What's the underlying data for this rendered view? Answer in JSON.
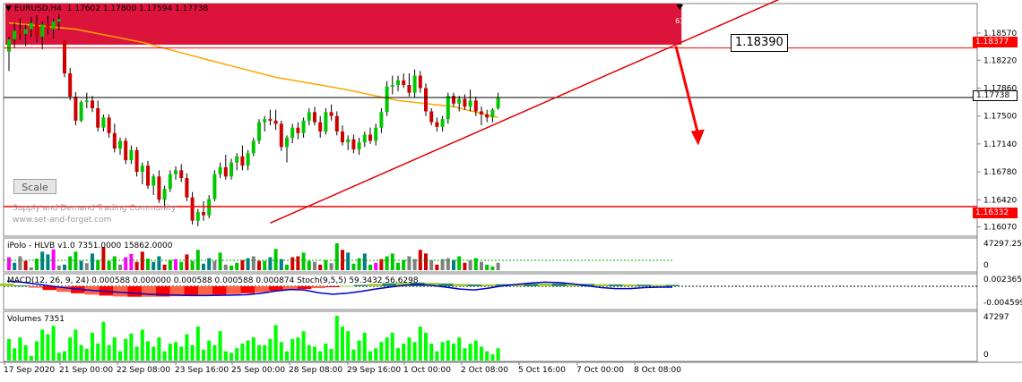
{
  "header": {
    "symbol": "EURUSD,H4",
    "ohlc": "1.17602 1.17800 1.17594 1.17738"
  },
  "scale_button": "Scale",
  "watermark": {
    "line1": "Supply and Demand Trading Community",
    "line2": "www.set-and-forget.com"
  },
  "zone": {
    "label": "61",
    "color": "#dc143c"
  },
  "annotation": {
    "level_text": "1.18390"
  },
  "price_tags": {
    "upper_red": "1.18377",
    "current": "1.17738",
    "lower_red": "1.16332"
  },
  "subpanels": {
    "ipolo_label": "iPolo - HLVB v1.0 7351.0000 15862.0000",
    "ipolo_axis": [
      "47297.25",
      "0"
    ],
    "macd_label": "MACD(12, 26, 9, 24) 0.000588 0.000000 0.000588 0.000588 0.000874  Stoch(9,5,5) 59.3432 56.6298",
    "macd_axis": [
      "0.002365",
      "-0.004599"
    ],
    "volumes_label": "Volumes 7351",
    "volumes_axis": [
      "47297",
      "0"
    ]
  },
  "colors": {
    "bull": "#00c800",
    "bear": "#d00000",
    "ma": "#ffa500",
    "trend": "#e00000",
    "volume": "#00ff00",
    "macd_line": "#0000cc"
  },
  "chart_data": {
    "type": "candlestick",
    "timeframe": "H4",
    "ylim": [
      1.1595,
      1.1895
    ],
    "y_ticks": [
      "1.18570",
      "1.18220",
      "1.17860",
      "1.17500",
      "1.17140",
      "1.16780",
      "1.16420",
      "1.16070"
    ],
    "x_ticks": [
      "17 Sep 2020",
      "21 Sep 00:00",
      "22 Sep 08:00",
      "23 Sep 16:00",
      "25 Sep 00:00",
      "28 Sep 08:00",
      "29 Sep 16:00",
      "1 Oct 00:00",
      "2 Oct 08:00",
      "5 Oct 16:00",
      "7 Oct 00:00",
      "8 Oct 08:00"
    ],
    "candles": [
      [
        1.1833,
        1.1852,
        1.1808,
        1.1849
      ],
      [
        1.1849,
        1.187,
        1.1838,
        1.186
      ],
      [
        1.186,
        1.1876,
        1.1848,
        1.1856
      ],
      [
        1.1856,
        1.1868,
        1.184,
        1.1862
      ],
      [
        1.1862,
        1.1878,
        1.1852,
        1.187
      ],
      [
        1.187,
        1.188,
        1.1845,
        1.1852
      ],
      [
        1.1852,
        1.1872,
        1.1836,
        1.1868
      ],
      [
        1.1868,
        1.1879,
        1.1855,
        1.1862
      ],
      [
        1.1862,
        1.1876,
        1.185,
        1.1872
      ],
      [
        1.1872,
        1.1882,
        1.1861,
        1.1875
      ],
      [
        1.1846,
        1.1848,
        1.18,
        1.1805
      ],
      [
        1.1805,
        1.1812,
        1.177,
        1.1775
      ],
      [
        1.1775,
        1.1781,
        1.1738,
        1.1744
      ],
      [
        1.1744,
        1.177,
        1.1742,
        1.1768
      ],
      [
        1.1768,
        1.178,
        1.176,
        1.177
      ],
      [
        1.177,
        1.1776,
        1.1755,
        1.176
      ],
      [
        1.176,
        1.177,
        1.173,
        1.1735
      ],
      [
        1.1735,
        1.1752,
        1.173,
        1.1748
      ],
      [
        1.1748,
        1.1752,
        1.1722,
        1.1728
      ],
      [
        1.1728,
        1.174,
        1.1703,
        1.1708
      ],
      [
        1.1708,
        1.1722,
        1.17,
        1.1718
      ],
      [
        1.1718,
        1.1722,
        1.1688,
        1.1693
      ],
      [
        1.1693,
        1.1712,
        1.1688,
        1.1706
      ],
      [
        1.1706,
        1.171,
        1.1672,
        1.1678
      ],
      [
        1.1678,
        1.169,
        1.1662,
        1.1686
      ],
      [
        1.1686,
        1.1692,
        1.1656,
        1.166
      ],
      [
        1.166,
        1.1675,
        1.1648,
        1.1672
      ],
      [
        1.1672,
        1.168,
        1.1638,
        1.1642
      ],
      [
        1.1642,
        1.166,
        1.163,
        1.1656
      ],
      [
        1.1656,
        1.168,
        1.1652,
        1.1675
      ],
      [
        1.1675,
        1.1685,
        1.1668,
        1.168
      ],
      [
        1.168,
        1.1688,
        1.1665,
        1.167
      ],
      [
        1.167,
        1.1676,
        1.164,
        1.1645
      ],
      [
        1.1645,
        1.1652,
        1.161,
        1.1615
      ],
      [
        1.1615,
        1.163,
        1.1608,
        1.1626
      ],
      [
        1.1626,
        1.164,
        1.1615,
        1.1622
      ],
      [
        1.1622,
        1.1648,
        1.1618,
        1.1643
      ],
      [
        1.1643,
        1.168,
        1.164,
        1.1675
      ],
      [
        1.1675,
        1.169,
        1.167,
        1.1684
      ],
      [
        1.1684,
        1.17,
        1.1668,
        1.1672
      ],
      [
        1.1672,
        1.1695,
        1.1668,
        1.169
      ],
      [
        1.169,
        1.1702,
        1.168,
        1.1698
      ],
      [
        1.1698,
        1.1712,
        1.168,
        1.1686
      ],
      [
        1.1686,
        1.1706,
        1.168,
        1.1702
      ],
      [
        1.1702,
        1.1722,
        1.1698,
        1.1718
      ],
      [
        1.1718,
        1.1746,
        1.1714,
        1.1742
      ],
      [
        1.1742,
        1.175,
        1.173,
        1.1746
      ],
      [
        1.1746,
        1.1758,
        1.1738,
        1.1744
      ],
      [
        1.1744,
        1.1758,
        1.1732,
        1.174
      ],
      [
        1.174,
        1.1744,
        1.1705,
        1.171
      ],
      [
        1.171,
        1.1725,
        1.169,
        1.1722
      ],
      [
        1.1722,
        1.174,
        1.1715,
        1.1735
      ],
      [
        1.1735,
        1.1742,
        1.172,
        1.1728
      ],
      [
        1.1728,
        1.1748,
        1.1722,
        1.1744
      ],
      [
        1.1744,
        1.176,
        1.1738,
        1.1755
      ],
      [
        1.1755,
        1.1762,
        1.1738,
        1.1742
      ],
      [
        1.1742,
        1.175,
        1.1722,
        1.173
      ],
      [
        1.173,
        1.176,
        1.1726,
        1.1755
      ],
      [
        1.1755,
        1.1765,
        1.1744,
        1.175
      ],
      [
        1.175,
        1.1756,
        1.1725,
        1.173
      ],
      [
        1.173,
        1.1738,
        1.1712,
        1.1716
      ],
      [
        1.1716,
        1.1725,
        1.1706,
        1.172
      ],
      [
        1.172,
        1.1726,
        1.1702,
        1.1707
      ],
      [
        1.1707,
        1.1722,
        1.17,
        1.1716
      ],
      [
        1.1716,
        1.173,
        1.171,
        1.1726
      ],
      [
        1.1726,
        1.1735,
        1.1714,
        1.1718
      ],
      [
        1.1718,
        1.174,
        1.1712,
        1.1735
      ],
      [
        1.1735,
        1.176,
        1.1728,
        1.1755
      ],
      [
        1.1755,
        1.1795,
        1.175,
        1.1788
      ],
      [
        1.1788,
        1.1802,
        1.1778,
        1.179
      ],
      [
        1.179,
        1.1802,
        1.1782,
        1.1796
      ],
      [
        1.1796,
        1.1805,
        1.1786,
        1.179
      ],
      [
        1.179,
        1.1805,
        1.1775,
        1.178
      ],
      [
        1.178,
        1.181,
        1.1774,
        1.1802
      ],
      [
        1.1802,
        1.1808,
        1.178,
        1.1786
      ],
      [
        1.1786,
        1.1792,
        1.175,
        1.1756
      ],
      [
        1.1756,
        1.176,
        1.1738,
        1.1742
      ],
      [
        1.1742,
        1.1748,
        1.173,
        1.1736
      ],
      [
        1.1736,
        1.175,
        1.173,
        1.1746
      ],
      [
        1.1746,
        1.178,
        1.174,
        1.1776
      ],
      [
        1.1776,
        1.178,
        1.1762,
        1.1766
      ],
      [
        1.1766,
        1.1776,
        1.1756,
        1.1772
      ],
      [
        1.1772,
        1.1778,
        1.1758,
        1.1762
      ],
      [
        1.1762,
        1.1784,
        1.1756,
        1.177
      ],
      [
        1.177,
        1.1775,
        1.175,
        1.1756
      ],
      [
        1.1756,
        1.1762,
        1.1738,
        1.1752
      ],
      [
        1.1752,
        1.1758,
        1.1742,
        1.1748
      ],
      [
        1.1748,
        1.176,
        1.1742,
        1.1758
      ],
      [
        1.176,
        1.178,
        1.1758,
        1.1774
      ]
    ],
    "ma_period_note": "",
    "ma": [
      [
        0,
        1.187
      ],
      [
        12,
        1.1862
      ],
      [
        24,
        1.1845
      ],
      [
        36,
        1.1822
      ],
      [
        48,
        1.18
      ],
      [
        60,
        1.1785
      ],
      [
        70,
        1.177
      ],
      [
        80,
        1.1762
      ],
      [
        88,
        1.1748
      ]
    ],
    "trendline": {
      "from": [
        47,
        1.1612
      ],
      "to": [
        140,
        1.1905
      ]
    },
    "levels": {
      "upper": 1.18377,
      "current": 1.17738,
      "lower": 1.16332
    },
    "zone": {
      "from_index": 0,
      "to_index": 121,
      "top": 1.1895,
      "bottom": 1.1842
    },
    "forecast_arrow": {
      "from": [
        120,
        1.184
      ],
      "to": [
        124,
        1.1712
      ]
    },
    "volumes": [
      28,
      16,
      30,
      20,
      6,
      25,
      40,
      34,
      45,
      10,
      12,
      30,
      40,
      20,
      15,
      36,
      22,
      50,
      20,
      30,
      12,
      28,
      35,
      18,
      40,
      25,
      18,
      30,
      12,
      22,
      24,
      18,
      34,
      20,
      44,
      14,
      26,
      20,
      38,
      12,
      10,
      16,
      22,
      26,
      30,
      20,
      20,
      28,
      46,
      24,
      12,
      28,
      30,
      38,
      20,
      18,
      12,
      22,
      15,
      58,
      44,
      38,
      14,
      26,
      36,
      12,
      16,
      24,
      30,
      36,
      16,
      22,
      30,
      24,
      44,
      36,
      22,
      12,
      24,
      26,
      22,
      30,
      16,
      22,
      26,
      18,
      12,
      8,
      16
    ],
    "macd_line": [
      0.0022,
      0.0018,
      0.001,
      0.0002,
      -0.0006,
      -0.0012,
      -0.0018,
      -0.0022,
      -0.0026,
      -0.003,
      -0.0034,
      -0.0036,
      -0.0038,
      -0.004,
      -0.004,
      -0.0039,
      -0.0038,
      -0.0036,
      -0.003,
      -0.002,
      -0.0014,
      -0.0016,
      -0.0028,
      -0.0034,
      -0.003,
      -0.0022,
      -0.0012,
      -0.0004,
      0.0004,
      0.0008,
      0.0004,
      -0.0004,
      -0.0012,
      -0.0016,
      -0.0008,
      0.0002,
      0.0008,
      0.0014,
      0.0018,
      0.0016,
      0.001,
      0.0002,
      -0.0006,
      -0.001,
      -0.001,
      -0.0006,
      -0.0004,
      -0.0004
    ],
    "macd_hist": [
      0.0012,
      0.0004,
      -0.0006,
      -0.0016,
      -0.0024,
      -0.003,
      -0.0036,
      -0.004,
      -0.0044,
      -0.0045,
      -0.0045,
      -0.0044,
      -0.0043,
      -0.0042,
      -0.004,
      -0.0036,
      -0.0034,
      -0.003,
      -0.0026,
      -0.002,
      -0.0016,
      -0.0012,
      -0.0008,
      -0.0004,
      0.0002,
      0.0006,
      0.001,
      0.0013,
      0.0015,
      0.0016,
      0.0015,
      0.0012,
      0.001,
      0.0008,
      0.0008,
      0.0009,
      0.001,
      0.0011,
      0.0012,
      0.0012,
      0.0011,
      0.001,
      0.0009,
      0.0008,
      0.0008,
      0.0007,
      0.0006,
      0.0006
    ]
  }
}
